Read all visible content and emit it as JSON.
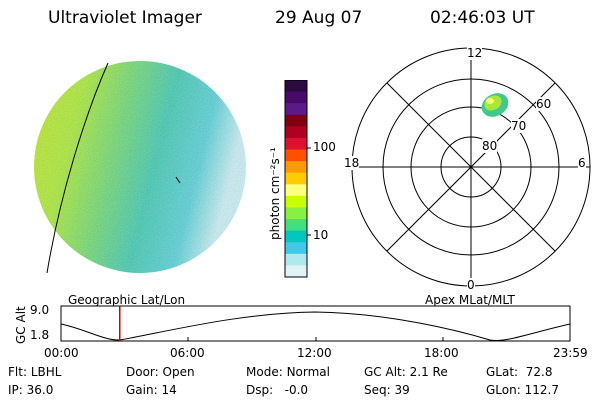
{
  "header": {
    "instrument": "Ultraviolet Imager",
    "date": "29 Aug 07",
    "time": "02:46:03 UT"
  },
  "colorbar": {
    "label": "photon cm⁻²s⁻¹",
    "ticks": [
      "100",
      "10"
    ],
    "colors": [
      "#2a0a40",
      "#4a0a6a",
      "#5a1a8a",
      "#800010",
      "#b00020",
      "#e01030",
      "#ff5000",
      "#ff9a00",
      "#ffcc00",
      "#ffff80",
      "#c8ff00",
      "#88f040",
      "#40e080",
      "#00c8c0",
      "#40c8e8",
      "#b0e8f0",
      "#e0f4f8"
    ]
  },
  "polar": {
    "mlt_labels": {
      "top": "12",
      "bottom": "0",
      "left": "18",
      "right": "6"
    },
    "lat_labels": [
      "60",
      "70",
      "80"
    ]
  },
  "timeline": {
    "left_label": "Geographic Lat/Lon",
    "right_label": "Apex  MLat/MLT",
    "axis_title": "GC Alt",
    "y_ticks": [
      "9.0",
      "1.8"
    ],
    "x_ticks": [
      "00:00",
      "06:00",
      "12:00",
      "18:00",
      "23:59"
    ],
    "current_time_hours": 2.77
  },
  "info": {
    "flt_label": "Flt:",
    "flt_value": "LBHL",
    "door_label": "Door:",
    "door_value": "Open",
    "mode_label": "Mode:",
    "mode_value": "Normal",
    "gcalt_label": "GC Alt:",
    "gcalt_value": "2.1 Re",
    "glat_label": "GLat:",
    "glat_value": "72.8",
    "ip_label": "IP:",
    "ip_value": "36.0",
    "gain_label": "Gain:",
    "gain_value": "14",
    "dsp_label": "Dsp:",
    "dsp_value": "-0.0",
    "seq_label": "Seq:",
    "seq_value": "39",
    "glon_label": "GLon:",
    "glon_value": "112.7"
  }
}
